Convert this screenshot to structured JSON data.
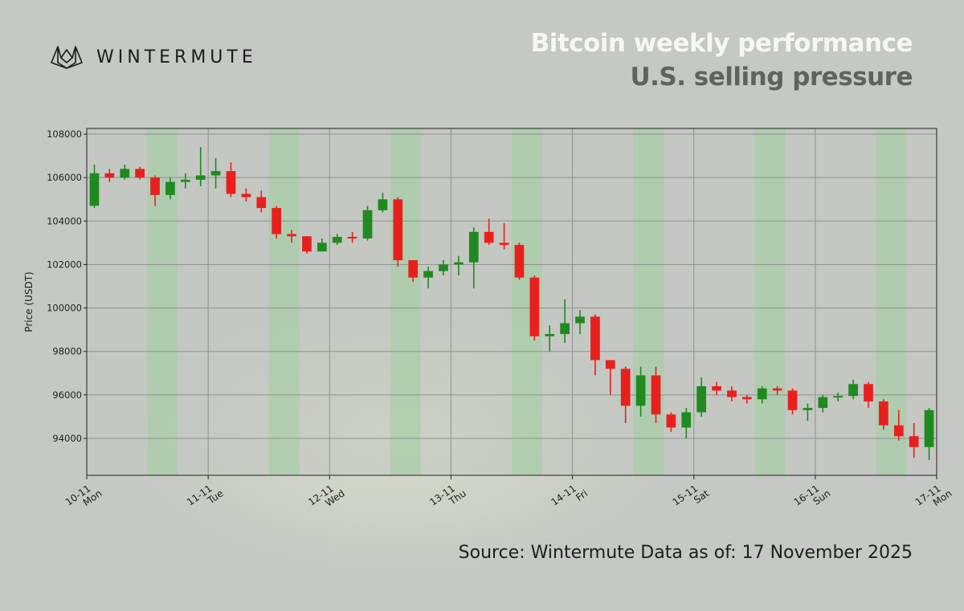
{
  "brand": {
    "name": "WINTERMUTE",
    "logo_icon": "wintermute-wolf-icon"
  },
  "header": {
    "title": "Bitcoin weekly performance",
    "subtitle": "U.S. selling pressure"
  },
  "footer": {
    "source": "Source: Wintermute  Data as of: 17 November 2025"
  },
  "colors": {
    "up": "#1f8a1f",
    "down": "#e8201d",
    "us_session_band": "#9fd09f",
    "title": "#f6f7f4",
    "subtitle": "#5f625f"
  },
  "chart_data": {
    "type": "candlestick",
    "ylabel": "Price (USDT)",
    "xlabel": "",
    "ylim": [
      92300,
      108260
    ],
    "yticks": [
      94000,
      96000,
      98000,
      100000,
      102000,
      104000,
      106000,
      108000
    ],
    "x_unit": "hours since 10-11 00:00",
    "xlim": [
      0,
      168
    ],
    "candle_interval_hours": 3,
    "xticks": [
      {
        "hour": 0,
        "date": "10-11",
        "day": "Mon"
      },
      {
        "hour": 24,
        "date": "11-11",
        "day": "Tue"
      },
      {
        "hour": 48,
        "date": "12-11",
        "day": "Wed"
      },
      {
        "hour": 72,
        "date": "13-11",
        "day": "Thu"
      },
      {
        "hour": 96,
        "date": "14-11",
        "day": "Fri"
      },
      {
        "hour": 120,
        "date": "15-11",
        "day": "Sat"
      },
      {
        "hour": 144,
        "date": "16-11",
        "day": "Sun"
      },
      {
        "hour": 168,
        "date": "17-11",
        "day": "Mon"
      }
    ],
    "shaded_hours_each_day": [
      12,
      18
    ],
    "grid": true,
    "ohlc": [
      [
        104700,
        106600,
        104600,
        106200
      ],
      [
        106200,
        106400,
        105800,
        106000
      ],
      [
        106000,
        106600,
        105900,
        106400
      ],
      [
        106400,
        106500,
        105900,
        106000
      ],
      [
        106000,
        106100,
        104700,
        105200
      ],
      [
        105200,
        106000,
        105000,
        105800
      ],
      [
        105800,
        106200,
        105500,
        105900
      ],
      [
        105900,
        107400,
        105600,
        106100
      ],
      [
        106100,
        106900,
        105500,
        106300
      ],
      [
        106300,
        106700,
        105100,
        105250
      ],
      [
        105250,
        105500,
        104900,
        105100
      ],
      [
        105100,
        105400,
        104400,
        104600
      ],
      [
        104600,
        104700,
        103200,
        103400
      ],
      [
        103400,
        103600,
        103000,
        103300
      ],
      [
        103300,
        103300,
        102500,
        102600
      ],
      [
        102600,
        103200,
        102600,
        103000
      ],
      [
        103000,
        103400,
        102900,
        103270
      ],
      [
        103270,
        103500,
        103000,
        103200
      ],
      [
        103200,
        104700,
        103100,
        104500
      ],
      [
        104500,
        105300,
        104400,
        105000
      ],
      [
        105000,
        105100,
        101900,
        102200
      ],
      [
        102200,
        102200,
        101200,
        101400
      ],
      [
        101400,
        101900,
        100900,
        101700
      ],
      [
        101700,
        102200,
        101500,
        102000
      ],
      [
        102000,
        102400,
        101500,
        102100
      ],
      [
        102100,
        103700,
        100900,
        103500
      ],
      [
        103500,
        104100,
        102900,
        103000
      ],
      [
        103000,
        103900,
        102700,
        102900
      ],
      [
        102900,
        103000,
        101300,
        101400
      ],
      [
        101400,
        101500,
        98500,
        98700
      ],
      [
        98700,
        99200,
        98000,
        98800
      ],
      [
        98800,
        100400,
        98400,
        99300
      ],
      [
        99300,
        99900,
        98800,
        99600
      ],
      [
        99600,
        99700,
        96900,
        97600
      ],
      [
        97600,
        97600,
        96000,
        97200
      ],
      [
        97200,
        97300,
        94700,
        95500
      ],
      [
        95500,
        97300,
        95000,
        96900
      ],
      [
        96900,
        97300,
        94700,
        95100
      ],
      [
        95100,
        95200,
        94300,
        94500
      ],
      [
        94500,
        95400,
        94000,
        95200
      ],
      [
        95200,
        96800,
        95000,
        96400
      ],
      [
        96400,
        96600,
        96000,
        96200
      ],
      [
        96200,
        96400,
        95700,
        95900
      ],
      [
        95900,
        96000,
        95600,
        95800
      ],
      [
        95800,
        96400,
        95600,
        96300
      ],
      [
        96300,
        96400,
        96000,
        96200
      ],
      [
        96200,
        96300,
        95100,
        95300
      ],
      [
        95300,
        95600,
        94800,
        95400
      ],
      [
        95400,
        96000,
        95200,
        95900
      ],
      [
        95900,
        96100,
        95700,
        95950
      ],
      [
        95950,
        96700,
        95800,
        96500
      ],
      [
        96500,
        96600,
        95400,
        95700
      ],
      [
        95700,
        95800,
        94400,
        94600
      ],
      [
        94600,
        95300,
        93900,
        94100
      ],
      [
        94100,
        94700,
        93100,
        93600
      ],
      [
        93600,
        95400,
        93000,
        95300
      ]
    ]
  }
}
